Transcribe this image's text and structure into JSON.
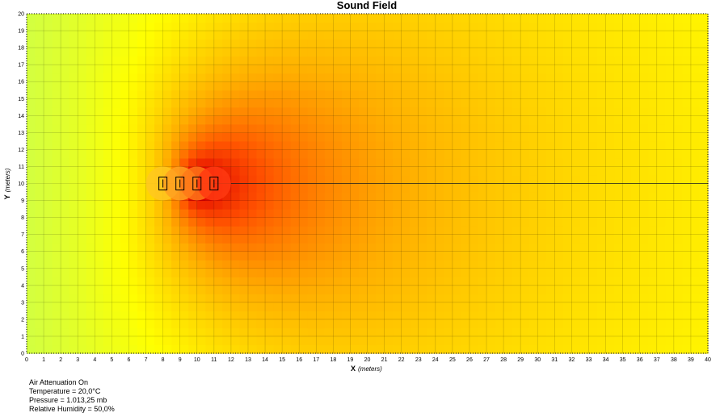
{
  "chart_data": {
    "type": "heatmap",
    "title": "Sound Field",
    "xlabel": "X",
    "xlabel_unit": "(meters)",
    "ylabel": "Y",
    "ylabel_unit": "(meters)",
    "xlim": [
      0,
      40
    ],
    "ylim": [
      0,
      20
    ],
    "x_ticks": [
      0,
      1,
      2,
      3,
      4,
      5,
      6,
      7,
      8,
      9,
      10,
      11,
      12,
      13,
      14,
      15,
      16,
      17,
      18,
      19,
      20,
      21,
      22,
      23,
      24,
      25,
      26,
      27,
      28,
      29,
      30,
      31,
      32,
      33,
      34,
      35,
      36,
      37,
      38,
      39,
      40
    ],
    "y_ticks": [
      0,
      1,
      2,
      3,
      4,
      5,
      6,
      7,
      8,
      9,
      10,
      11,
      12,
      13,
      14,
      15,
      16,
      17,
      18,
      19,
      20
    ],
    "grid": true,
    "colormap": [
      "#0050ff",
      "#00c8ff",
      "#40ffd8",
      "#c8ff50",
      "#ffff00",
      "#ffb000",
      "#ff5000",
      "#e00000"
    ],
    "sources": [
      {
        "x": 8.0,
        "y": 10.0
      },
      {
        "x": 9.0,
        "y": 10.0
      },
      {
        "x": 10.0,
        "y": 10.0
      },
      {
        "x": 11.0,
        "y": 10.0
      }
    ],
    "reference_line": {
      "y": 10.0,
      "x_from": 8.0,
      "x_to": 40.0
    }
  },
  "notes": [
    "Air Attenuation On",
    "Temperature = 20,0°C",
    "Pressure = 1.013,25  mb",
    "Relative Humidity = 50,0%"
  ]
}
